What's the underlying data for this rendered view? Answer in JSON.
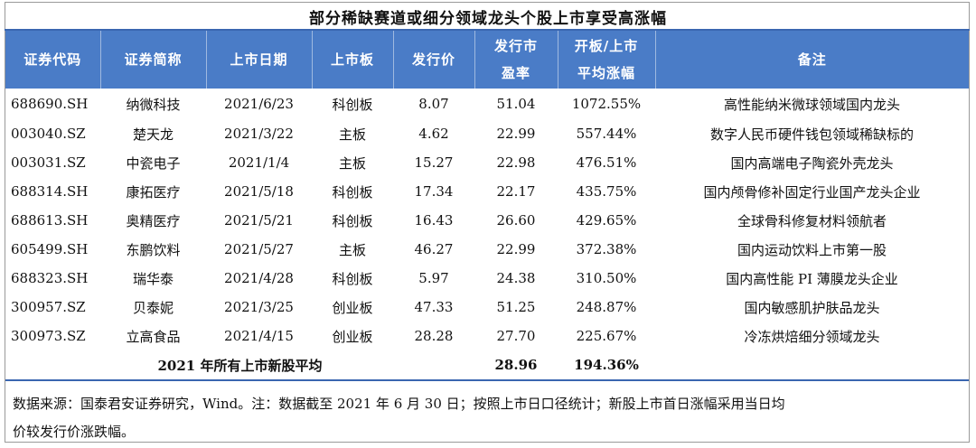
{
  "title": "部分稀缺赛道或细分领域龙头个股上市享受高涨幅",
  "table": {
    "headers": [
      "证券代码",
      "证券简称",
      "上市日期",
      "上市板",
      "发行价",
      "发行市盈率",
      "开板/上市平均涨幅",
      "备注"
    ],
    "header_lines": {
      "pe": [
        "发行市",
        "盈率"
      ],
      "gain": [
        "开板/上市",
        "平均涨幅"
      ]
    },
    "rows": [
      {
        "code": "688690.SH",
        "name": "纳微科技",
        "date": "2021/6/23",
        "board": "科创板",
        "price": "8.07",
        "pe": "51.04",
        "gain": "1072.55%",
        "note": "高性能纳米微球领域国内龙头"
      },
      {
        "code": "003040.SZ",
        "name": "楚天龙",
        "date": "2021/3/22",
        "board": "主板",
        "price": "4.62",
        "pe": "22.99",
        "gain": "557.44%",
        "note": "数字人民币硬件钱包领域稀缺标的"
      },
      {
        "code": "003031.SZ",
        "name": "中瓷电子",
        "date": "2021/1/4",
        "board": "主板",
        "price": "15.27",
        "pe": "22.98",
        "gain": "476.51%",
        "note": "国内高端电子陶瓷外壳龙头"
      },
      {
        "code": "688314.SH",
        "name": "康拓医疗",
        "date": "2021/5/18",
        "board": "科创板",
        "price": "17.34",
        "pe": "22.17",
        "gain": "435.75%",
        "note": "国内颅骨修补固定行业国产龙头企业"
      },
      {
        "code": "688613.SH",
        "name": "奥精医疗",
        "date": "2021/5/21",
        "board": "科创板",
        "price": "16.43",
        "pe": "26.60",
        "gain": "429.65%",
        "note": "全球骨科修复材料领航者"
      },
      {
        "code": "605499.SH",
        "name": "东鹏饮料",
        "date": "2021/5/27",
        "board": "主板",
        "price": "46.27",
        "pe": "22.99",
        "gain": "372.38%",
        "note": "国内运动饮料上市第一股"
      },
      {
        "code": "688323.SH",
        "name": "瑞华泰",
        "date": "2021/4/28",
        "board": "科创板",
        "price": "5.97",
        "pe": "24.38",
        "gain": "310.50%",
        "note": "国内高性能 PI 薄膜龙头企业"
      },
      {
        "code": "300957.SZ",
        "name": "贝泰妮",
        "date": "2021/3/25",
        "board": "创业板",
        "price": "47.33",
        "pe": "51.25",
        "gain": "248.87%",
        "note": "国内敏感肌护肤品龙头"
      },
      {
        "code": "300973.SZ",
        "name": "立高食品",
        "date": "2021/4/15",
        "board": "创业板",
        "price": "28.28",
        "pe": "27.70",
        "gain": "225.67%",
        "note": "冷冻烘焙细分领域龙头"
      }
    ],
    "average": {
      "label": "2021 年所有上市新股平均",
      "pe": "28.96",
      "gain": "194.36%"
    }
  },
  "footer": {
    "line1": "数据来源：国泰君安证券研究，Wind。注：数据截至 2021 年 6 月 30 日；按照上市日口径统计；新股上市首日涨幅采用当日均",
    "line2": "价较发行价涨跌幅。"
  },
  "colors": {
    "header_bg": "#4a7cc7",
    "rule": "#3a66b0",
    "header_text": "#ffffff"
  }
}
